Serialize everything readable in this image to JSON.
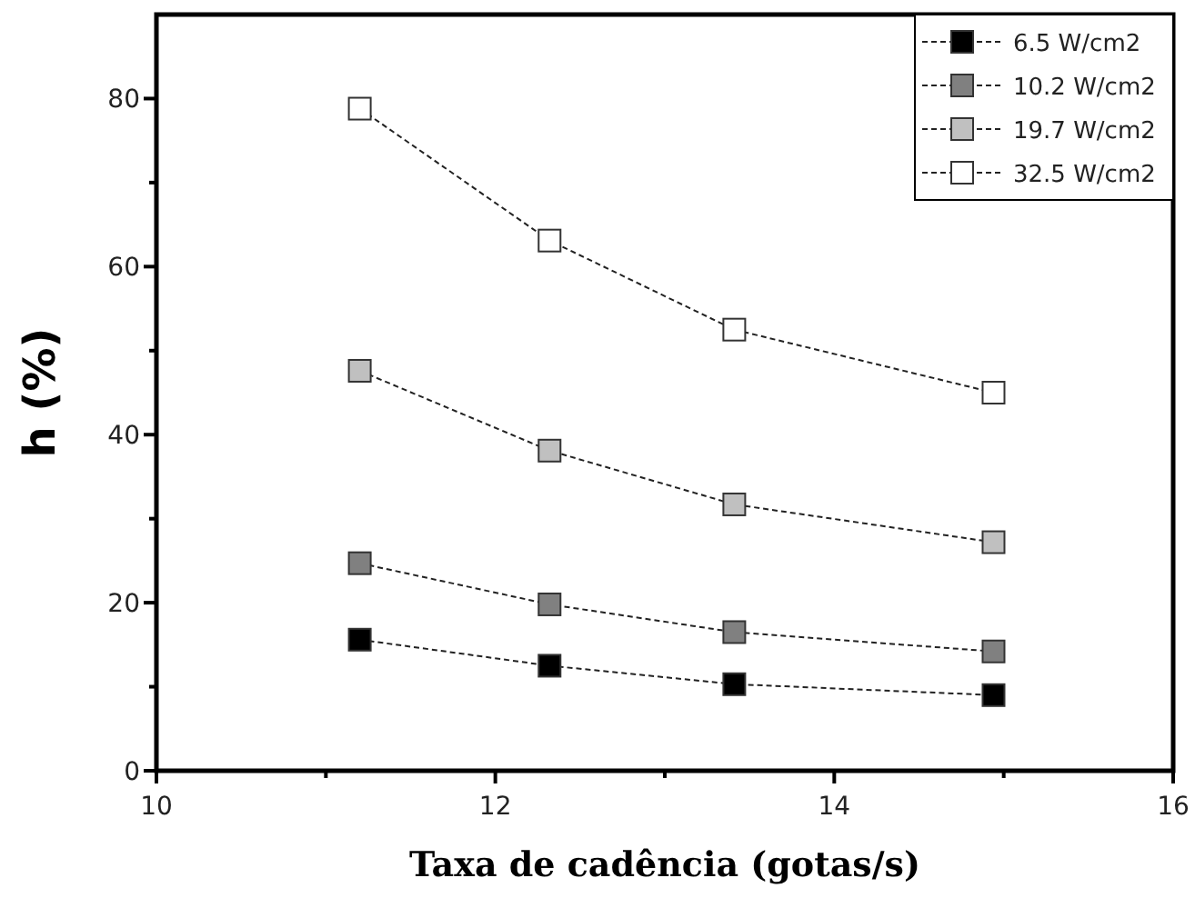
{
  "chart_data": {
    "type": "line",
    "xlabel": "Taxa de cadência (gotas/s)",
    "ylabel": "h (%)",
    "x": [
      11.2,
      12.32,
      13.41,
      14.94
    ],
    "xlim": [
      10,
      16
    ],
    "xticks": [
      10,
      {
        "value": 11,
        "label": null
      },
      12,
      {
        "value": 13,
        "label": null
      },
      14,
      {
        "value": 15,
        "label": null
      },
      16
    ],
    "ylim": [
      0,
      90
    ],
    "yticks": [
      0,
      {
        "value": 10,
        "label": null
      },
      20,
      {
        "value": 30,
        "label": null
      },
      40,
      {
        "value": 50,
        "label": null
      },
      60,
      {
        "value": 70,
        "label": null
      },
      80
    ],
    "marker": "square",
    "line_style": "dashed",
    "legend": "top right",
    "grid": false,
    "series": [
      {
        "name": "6.5 W/cm2",
        "color": "#000000",
        "values": [
          15.6,
          12.5,
          10.3,
          9.0
        ]
      },
      {
        "name": "10.2 W/cm2",
        "color": "#808080",
        "values": [
          24.7,
          19.8,
          16.5,
          14.2
        ]
      },
      {
        "name": "19.7 W/cm2",
        "color": "#c0c0c0",
        "values": [
          47.6,
          38.1,
          31.7,
          27.2
        ]
      },
      {
        "name": "32.5 W/cm2",
        "color": "#ffffff",
        "values": [
          78.8,
          63.1,
          52.5,
          45.0
        ]
      }
    ]
  }
}
